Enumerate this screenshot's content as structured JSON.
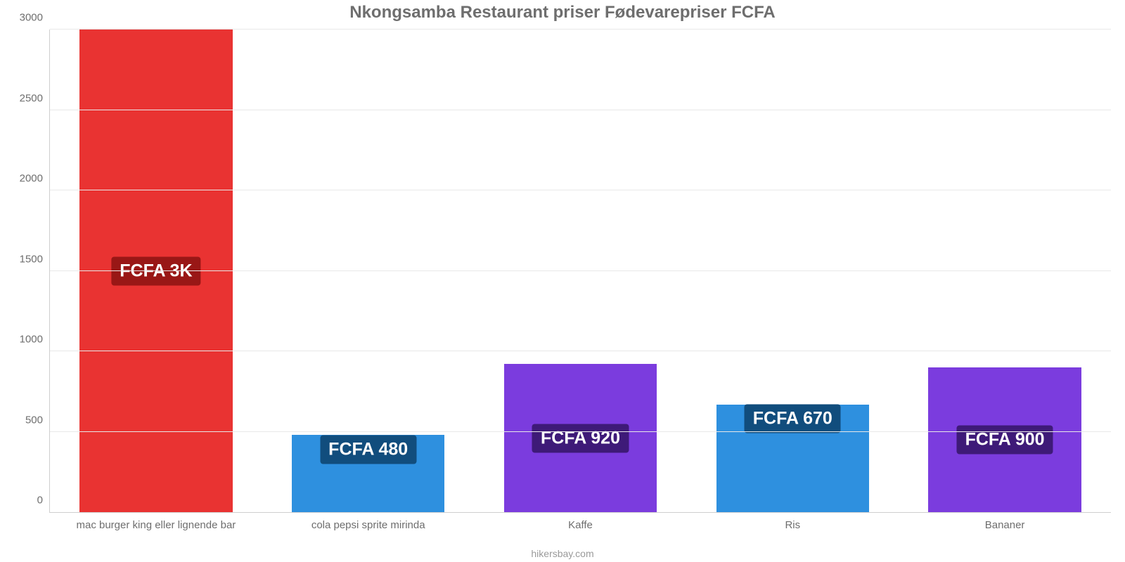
{
  "chart": {
    "type": "bar",
    "title": "Nkongsamba Restaurant priser Fødevarepriser FCFA",
    "title_color": "#6e6e6e",
    "title_fontsize": 24,
    "footer": "hikersbay.com",
    "footer_color": "#9a9a9a",
    "footer_fontsize": 14,
    "background_color": "#ffffff",
    "axis_color": "#cfcfcf",
    "grid_color": "#e8e8e8",
    "tick_label_color": "#6e6e6e",
    "tick_label_fontsize": 15,
    "ylim": [
      0,
      3000
    ],
    "ytick_step": 500,
    "yticks": [
      0,
      500,
      1000,
      1500,
      2000,
      2500,
      3000
    ],
    "bar_width": 0.72,
    "value_label_fontsize": 25,
    "value_label_text_color": "#ffffff",
    "categories": [
      {
        "label": "mac burger king eller lignende bar",
        "value": 3000,
        "display": "FCFA 3K",
        "bar_color": "#e93332",
        "label_bg": "#991716"
      },
      {
        "label": "cola pepsi sprite mirinda",
        "value": 480,
        "display": "FCFA 480",
        "bar_color": "#2e90df",
        "label_bg": "#114d7d"
      },
      {
        "label": "Kaffe",
        "value": 920,
        "display": "FCFA 920",
        "bar_color": "#7b3cde",
        "label_bg": "#3e1a78"
      },
      {
        "label": "Ris",
        "value": 670,
        "display": "FCFA 670",
        "bar_color": "#2e90df",
        "label_bg": "#114d7d"
      },
      {
        "label": "Bananer",
        "value": 900,
        "display": "FCFA 900",
        "bar_color": "#7b3cde",
        "label_bg": "#3e1a78"
      }
    ]
  }
}
